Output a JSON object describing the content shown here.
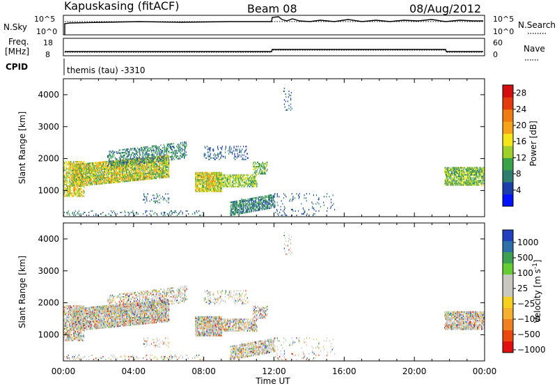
{
  "header": {
    "station": "Kapuskasing (fitACF)",
    "beam": "Beam 08",
    "date": "08/Aug/2012"
  },
  "panels": {
    "nsky_label": "N.Sky",
    "nsky_ticks": [
      "10^5",
      "10^0"
    ],
    "nsearch_label": "N.Search",
    "nsearch_ticks": [
      "10^5",
      "10^0"
    ],
    "freq_label_line1": "Freq.",
    "freq_label_line2": "[MHz]",
    "freq_ticks": [
      "18",
      "8"
    ],
    "nave_label": "Nave",
    "nave_ticks": [
      "60",
      "0"
    ],
    "cpid_label": "CPID",
    "cpid_value": "themis (tau) -3310"
  },
  "colors": {
    "power": [
      "#0014ff",
      "#1a3fa8",
      "#2e7d6e",
      "#3aa34a",
      "#9fcf2a",
      "#f5e51b",
      "#f5a31b",
      "#ef7b12",
      "#e33a0f",
      "#d40f0f"
    ],
    "velocity_neg": [
      "#e01010",
      "#ea4a10",
      "#f08020",
      "#f5b030",
      "#f5d020"
    ],
    "velocity_zero": "#c8c8c0",
    "velocity_pos": [
      "#66cc33",
      "#3f9f52",
      "#2f6fa8",
      "#2040c0"
    ]
  },
  "chart_data": [
    {
      "type": "heatmap",
      "xlabel": "Time UT",
      "ylabel": "Slant Range [km]",
      "xlim": [
        0,
        24
      ],
      "ylim": [
        180,
        4500
      ],
      "xticks": [
        "00:00",
        "04:00",
        "08:00",
        "12:00",
        "16:00",
        "20:00",
        "00:00"
      ],
      "yticks": [
        "1000",
        "2000",
        "3000",
        "4000"
      ],
      "colorbar": {
        "label": "Power [dB]",
        "ticks": [
          "4",
          "8",
          "12",
          "16",
          "20",
          "24",
          "28"
        ],
        "range": [
          0,
          30
        ]
      }
    },
    {
      "type": "heatmap",
      "xlabel": "Time UT",
      "ylabel": "Slant Range [km]",
      "xlim": [
        0,
        24
      ],
      "ylim": [
        180,
        4500
      ],
      "xticks": [
        "00:00",
        "04:00",
        "08:00",
        "12:00",
        "16:00",
        "20:00",
        "00:00"
      ],
      "yticks": [
        "1000",
        "2000",
        "3000",
        "4000"
      ],
      "colorbar": {
        "label": "Velocity [m s^-1]",
        "ticks": [
          "1000",
          "500",
          "100",
          "25",
          "−25",
          "−100",
          "−500",
          "−1000"
        ]
      }
    }
  ]
}
